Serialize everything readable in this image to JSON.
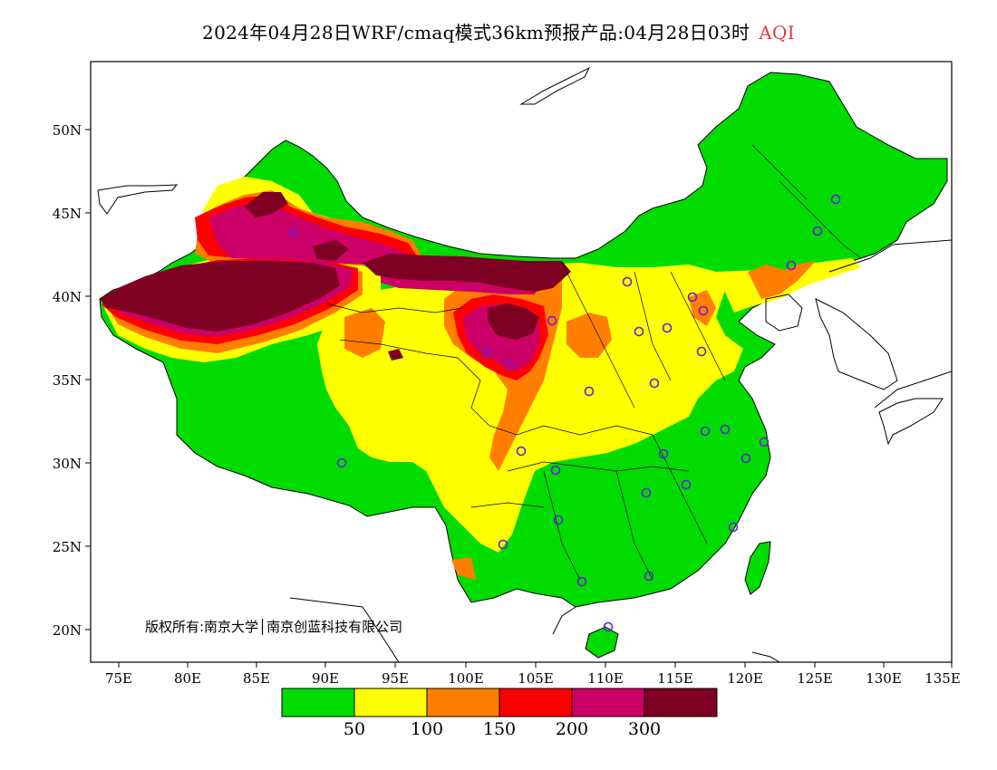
{
  "title": {
    "main": "2024年04月28日WRF/cmaq模式36km预报产品:04月28日03时",
    "product": "AQI"
  },
  "axes": {
    "lat_ticks": [
      "50N",
      "45N",
      "40N",
      "35N",
      "30N",
      "25N",
      "20N"
    ],
    "lon_ticks": [
      "75E",
      "80E",
      "85E",
      "90E",
      "95E",
      "100E",
      "105E",
      "110E",
      "115E",
      "120E",
      "125E",
      "130E",
      "135E"
    ]
  },
  "copyright": "版权所有:南京大学│南京创蓝科技有限公司",
  "legend": {
    "colors": [
      "#00dc00",
      "#ffff00",
      "#ff7e00",
      "#ff0000",
      "#cc0066",
      "#7e0023"
    ],
    "labels": [
      "50",
      "100",
      "150",
      "200",
      "300"
    ]
  }
}
